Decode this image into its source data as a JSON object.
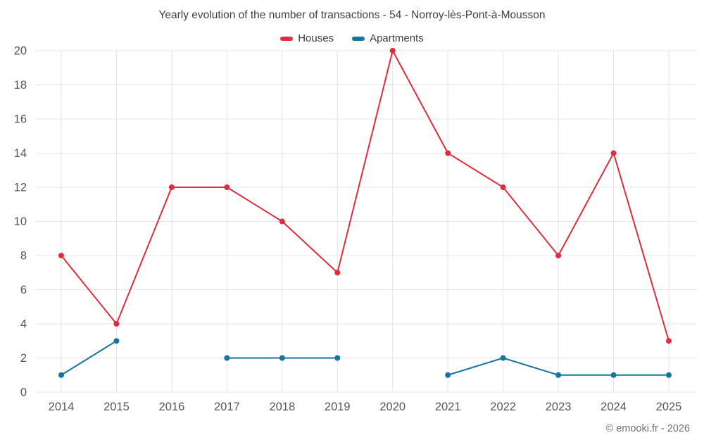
{
  "chart_data": {
    "type": "line",
    "title": "Yearly evolution of the number of transactions - 54 - Norroy-lès-Pont-à-Mousson",
    "categories": [
      "2014",
      "2015",
      "2016",
      "2017",
      "2018",
      "2019",
      "2020",
      "2021",
      "2022",
      "2023",
      "2024",
      "2025"
    ],
    "series": [
      {
        "name": "Houses",
        "color": "#e02d3c",
        "values": [
          8,
          4,
          12,
          12,
          10,
          7,
          20,
          14,
          12,
          8,
          14,
          3
        ]
      },
      {
        "name": "Apartments",
        "color": "#16749e",
        "values": [
          1,
          3,
          null,
          2,
          2,
          2,
          null,
          1,
          2,
          1,
          1,
          1
        ]
      }
    ],
    "xlabel": "",
    "ylabel": "",
    "ylim": [
      0,
      20
    ],
    "y_ticks": [
      0,
      2,
      4,
      6,
      8,
      10,
      12,
      14,
      16,
      18,
      20
    ],
    "grid": true,
    "legend_position": "top",
    "grid_color": "#e4e4e4",
    "tick_color": "#565656"
  },
  "footer": {
    "credit": "© emooki.fr - 2026"
  }
}
